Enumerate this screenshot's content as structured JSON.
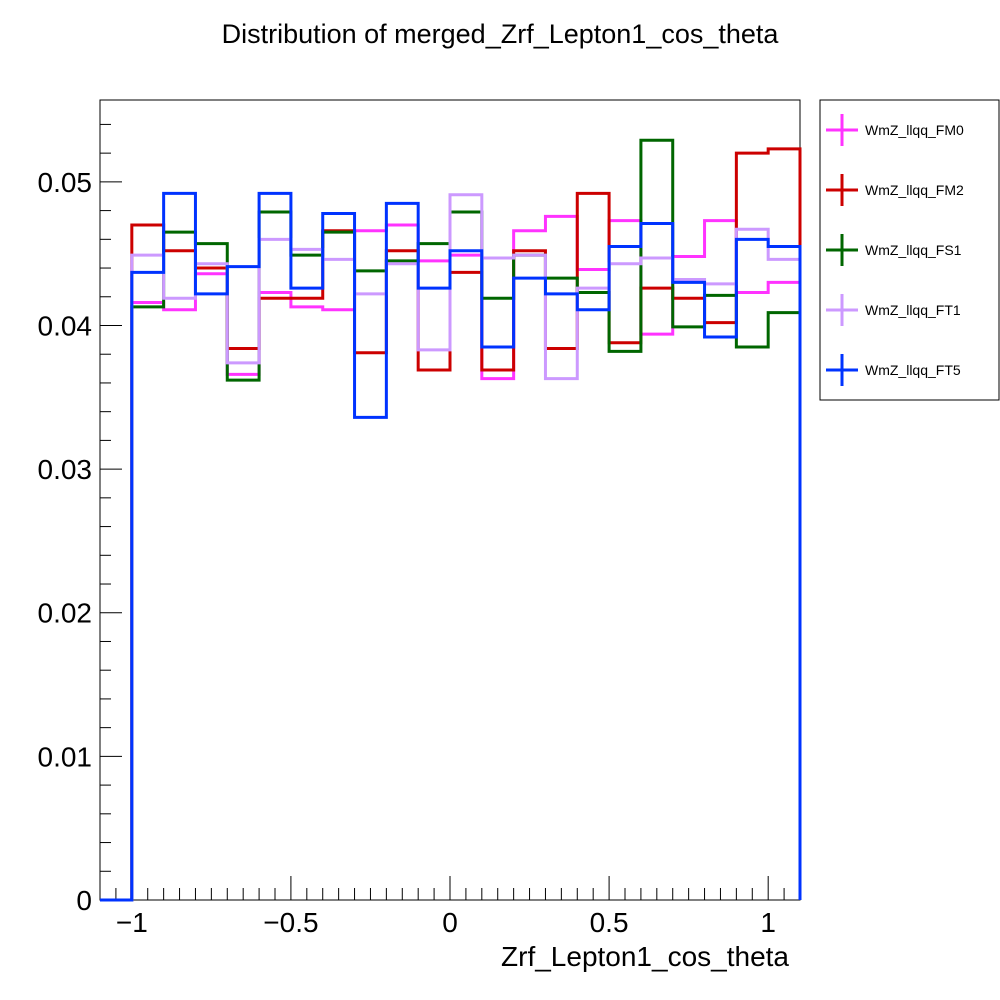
{
  "chart_data": {
    "type": "step-histogram",
    "title": "Distribution of merged_Zrf_Lepton1_cos_theta",
    "xlabel": "Zrf_Lepton1_cos_theta",
    "ylabel": "",
    "xlim": [
      -1.1,
      1.1
    ],
    "ylim": [
      0,
      0.0557
    ],
    "x_ticks": [
      -1,
      -0.5,
      0,
      0.5,
      1
    ],
    "x_tick_labels": [
      "−1",
      "−0.5",
      "0",
      "0.5",
      "1"
    ],
    "y_ticks": [
      0,
      0.01,
      0.02,
      0.03,
      0.04,
      0.05
    ],
    "y_tick_labels": [
      "0",
      "0.01",
      "0.02",
      "0.03",
      "0.04",
      "0.05"
    ],
    "bin_edges": [
      -1.1,
      -1.0,
      -0.9,
      -0.8,
      -0.7,
      -0.6,
      -0.5,
      -0.4,
      -0.3,
      -0.2,
      -0.1,
      0.0,
      0.1,
      0.2,
      0.3,
      0.4,
      0.5,
      0.6,
      0.7,
      0.8,
      0.9,
      1.0,
      1.1
    ],
    "legend_position": "right",
    "grid": false,
    "series": [
      {
        "name": "WmZ_llqq_FM0",
        "color": "#ff33ff",
        "values": [
          0,
          0.0416,
          0.0411,
          0.0436,
          0.0366,
          0.0423,
          0.0413,
          0.0411,
          0.0466,
          0.047,
          0.0445,
          0.0449,
          0.0363,
          0.0466,
          0.0476,
          0.0439,
          0.0473,
          0.0394,
          0.0448,
          0.0473,
          0.0423,
          0.043,
          0
        ]
      },
      {
        "name": "WmZ_llqq_FM2",
        "color": "#cc0000",
        "values": [
          0,
          0.047,
          0.0452,
          0.044,
          0.0384,
          0.0419,
          0.0419,
          0.0466,
          0.0381,
          0.0452,
          0.0369,
          0.0437,
          0.0369,
          0.0452,
          0.0384,
          0.0492,
          0.0388,
          0.0426,
          0.0419,
          0.0402,
          0.052,
          0.0523,
          0
        ]
      },
      {
        "name": "WmZ_llqq_FS1",
        "color": "#006600",
        "values": [
          0,
          0.0413,
          0.0465,
          0.0457,
          0.0362,
          0.0479,
          0.0449,
          0.0465,
          0.0438,
          0.0445,
          0.0457,
          0.0479,
          0.0419,
          0.0449,
          0.0433,
          0.0423,
          0.0382,
          0.0529,
          0.0399,
          0.0421,
          0.0385,
          0.0409,
          0
        ]
      },
      {
        "name": "WmZ_llqq_FT1",
        "color": "#cc99ff",
        "values": [
          0,
          0.0449,
          0.0419,
          0.0443,
          0.0374,
          0.046,
          0.0453,
          0.0446,
          0.0422,
          0.0443,
          0.0383,
          0.0491,
          0.0447,
          0.0449,
          0.0363,
          0.0426,
          0.0443,
          0.0447,
          0.0432,
          0.0429,
          0.0467,
          0.0446,
          0
        ]
      },
      {
        "name": "WmZ_llqq_FT5",
        "color": "#0033ff",
        "values": [
          0,
          0.0437,
          0.0492,
          0.0422,
          0.0441,
          0.0492,
          0.0426,
          0.0478,
          0.0336,
          0.0485,
          0.0426,
          0.0452,
          0.0385,
          0.0433,
          0.0422,
          0.0411,
          0.0455,
          0.0471,
          0.043,
          0.0392,
          0.046,
          0.0455,
          0
        ]
      }
    ]
  }
}
